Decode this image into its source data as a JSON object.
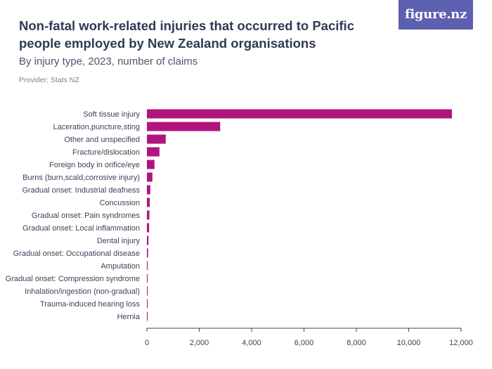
{
  "header": {
    "title": "Non-fatal work-related injuries that occurred to Pacific people employed by New Zealand organisations",
    "subtitle": "By injury type, 2023, number of claims",
    "provider": "Provider: Stats NZ",
    "logo_text": "figure.nz"
  },
  "colors": {
    "bar": "#b0157f",
    "axis": "#3b4357",
    "logo_bg": "#5d5fb0"
  },
  "chart_data": {
    "type": "bar",
    "orientation": "horizontal",
    "title": "Non-fatal work-related injuries that occurred to Pacific people employed by New Zealand organisations",
    "subtitle": "By injury type, 2023, number of claims",
    "xlabel": "",
    "ylabel": "",
    "xlim": [
      0,
      12000
    ],
    "xticks": [
      "0",
      "2,000",
      "4,000",
      "6,000",
      "8,000",
      "10,000",
      "12,000"
    ],
    "xtick_values": [
      0,
      2000,
      4000,
      6000,
      8000,
      10000,
      12000
    ],
    "grid": false,
    "categories": [
      "Soft tissue injury",
      "Laceration,puncture,sting",
      "Other and unspecified",
      "Fracture/dislocation",
      "Foreign body in orifice/eye",
      "Burns (burn,scald,corrosive injury)",
      "Gradual onset: Industrial deafness",
      "Concussion",
      "Gradual onset: Pain syndromes",
      "Gradual onset: Local inflammation",
      "Dental injury",
      "Gradual onset: Occupational disease",
      "Amputation",
      "Gradual onset: Compression syndrome",
      "Inhalation/ingestion (non-gradual)",
      "Trauma-induced hearing loss",
      "Hernia"
    ],
    "values": [
      11650,
      2800,
      720,
      480,
      290,
      210,
      130,
      110,
      95,
      85,
      60,
      45,
      30,
      20,
      15,
      10,
      5
    ]
  }
}
